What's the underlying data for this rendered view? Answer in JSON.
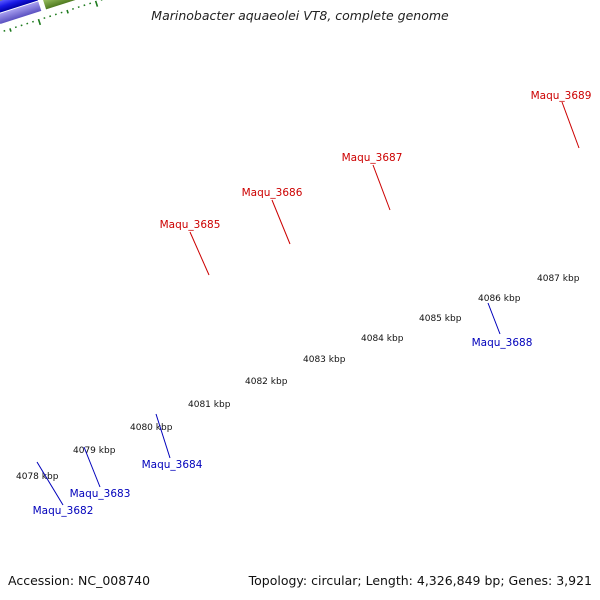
{
  "title": "Marinobacter aquaeolei VT8, complete genome",
  "footer": {
    "accession": "Accession: NC_008740",
    "summary": "Topology: circular; Length: 4,326,849 bp; Genes: 3,921"
  },
  "colors": {
    "forward_label": "#cc0000",
    "reverse_label": "#0000bb",
    "backbone": "#777777",
    "tick": "#1e7a1e"
  },
  "kbp_labels": [
    "4078 kbp",
    "4079 kbp",
    "4080 kbp",
    "4081 kbp",
    "4082 kbp",
    "4083 kbp",
    "4084 kbp",
    "4085 kbp",
    "4086 kbp",
    "4087 kbp"
  ],
  "gene_labels": [
    {
      "id": "Maqu_3685",
      "strand": "forward"
    },
    {
      "id": "Maqu_3686",
      "strand": "forward"
    },
    {
      "id": "Maqu_3687",
      "strand": "forward"
    },
    {
      "id": "Maqu_3689",
      "strand": "forward"
    },
    {
      "id": "Maqu_3688",
      "strand": "reverse"
    },
    {
      "id": "Maqu_3684",
      "strand": "reverse"
    },
    {
      "id": "Maqu_3683",
      "strand": "reverse"
    },
    {
      "id": "Maqu_3682",
      "strand": "reverse"
    }
  ]
}
